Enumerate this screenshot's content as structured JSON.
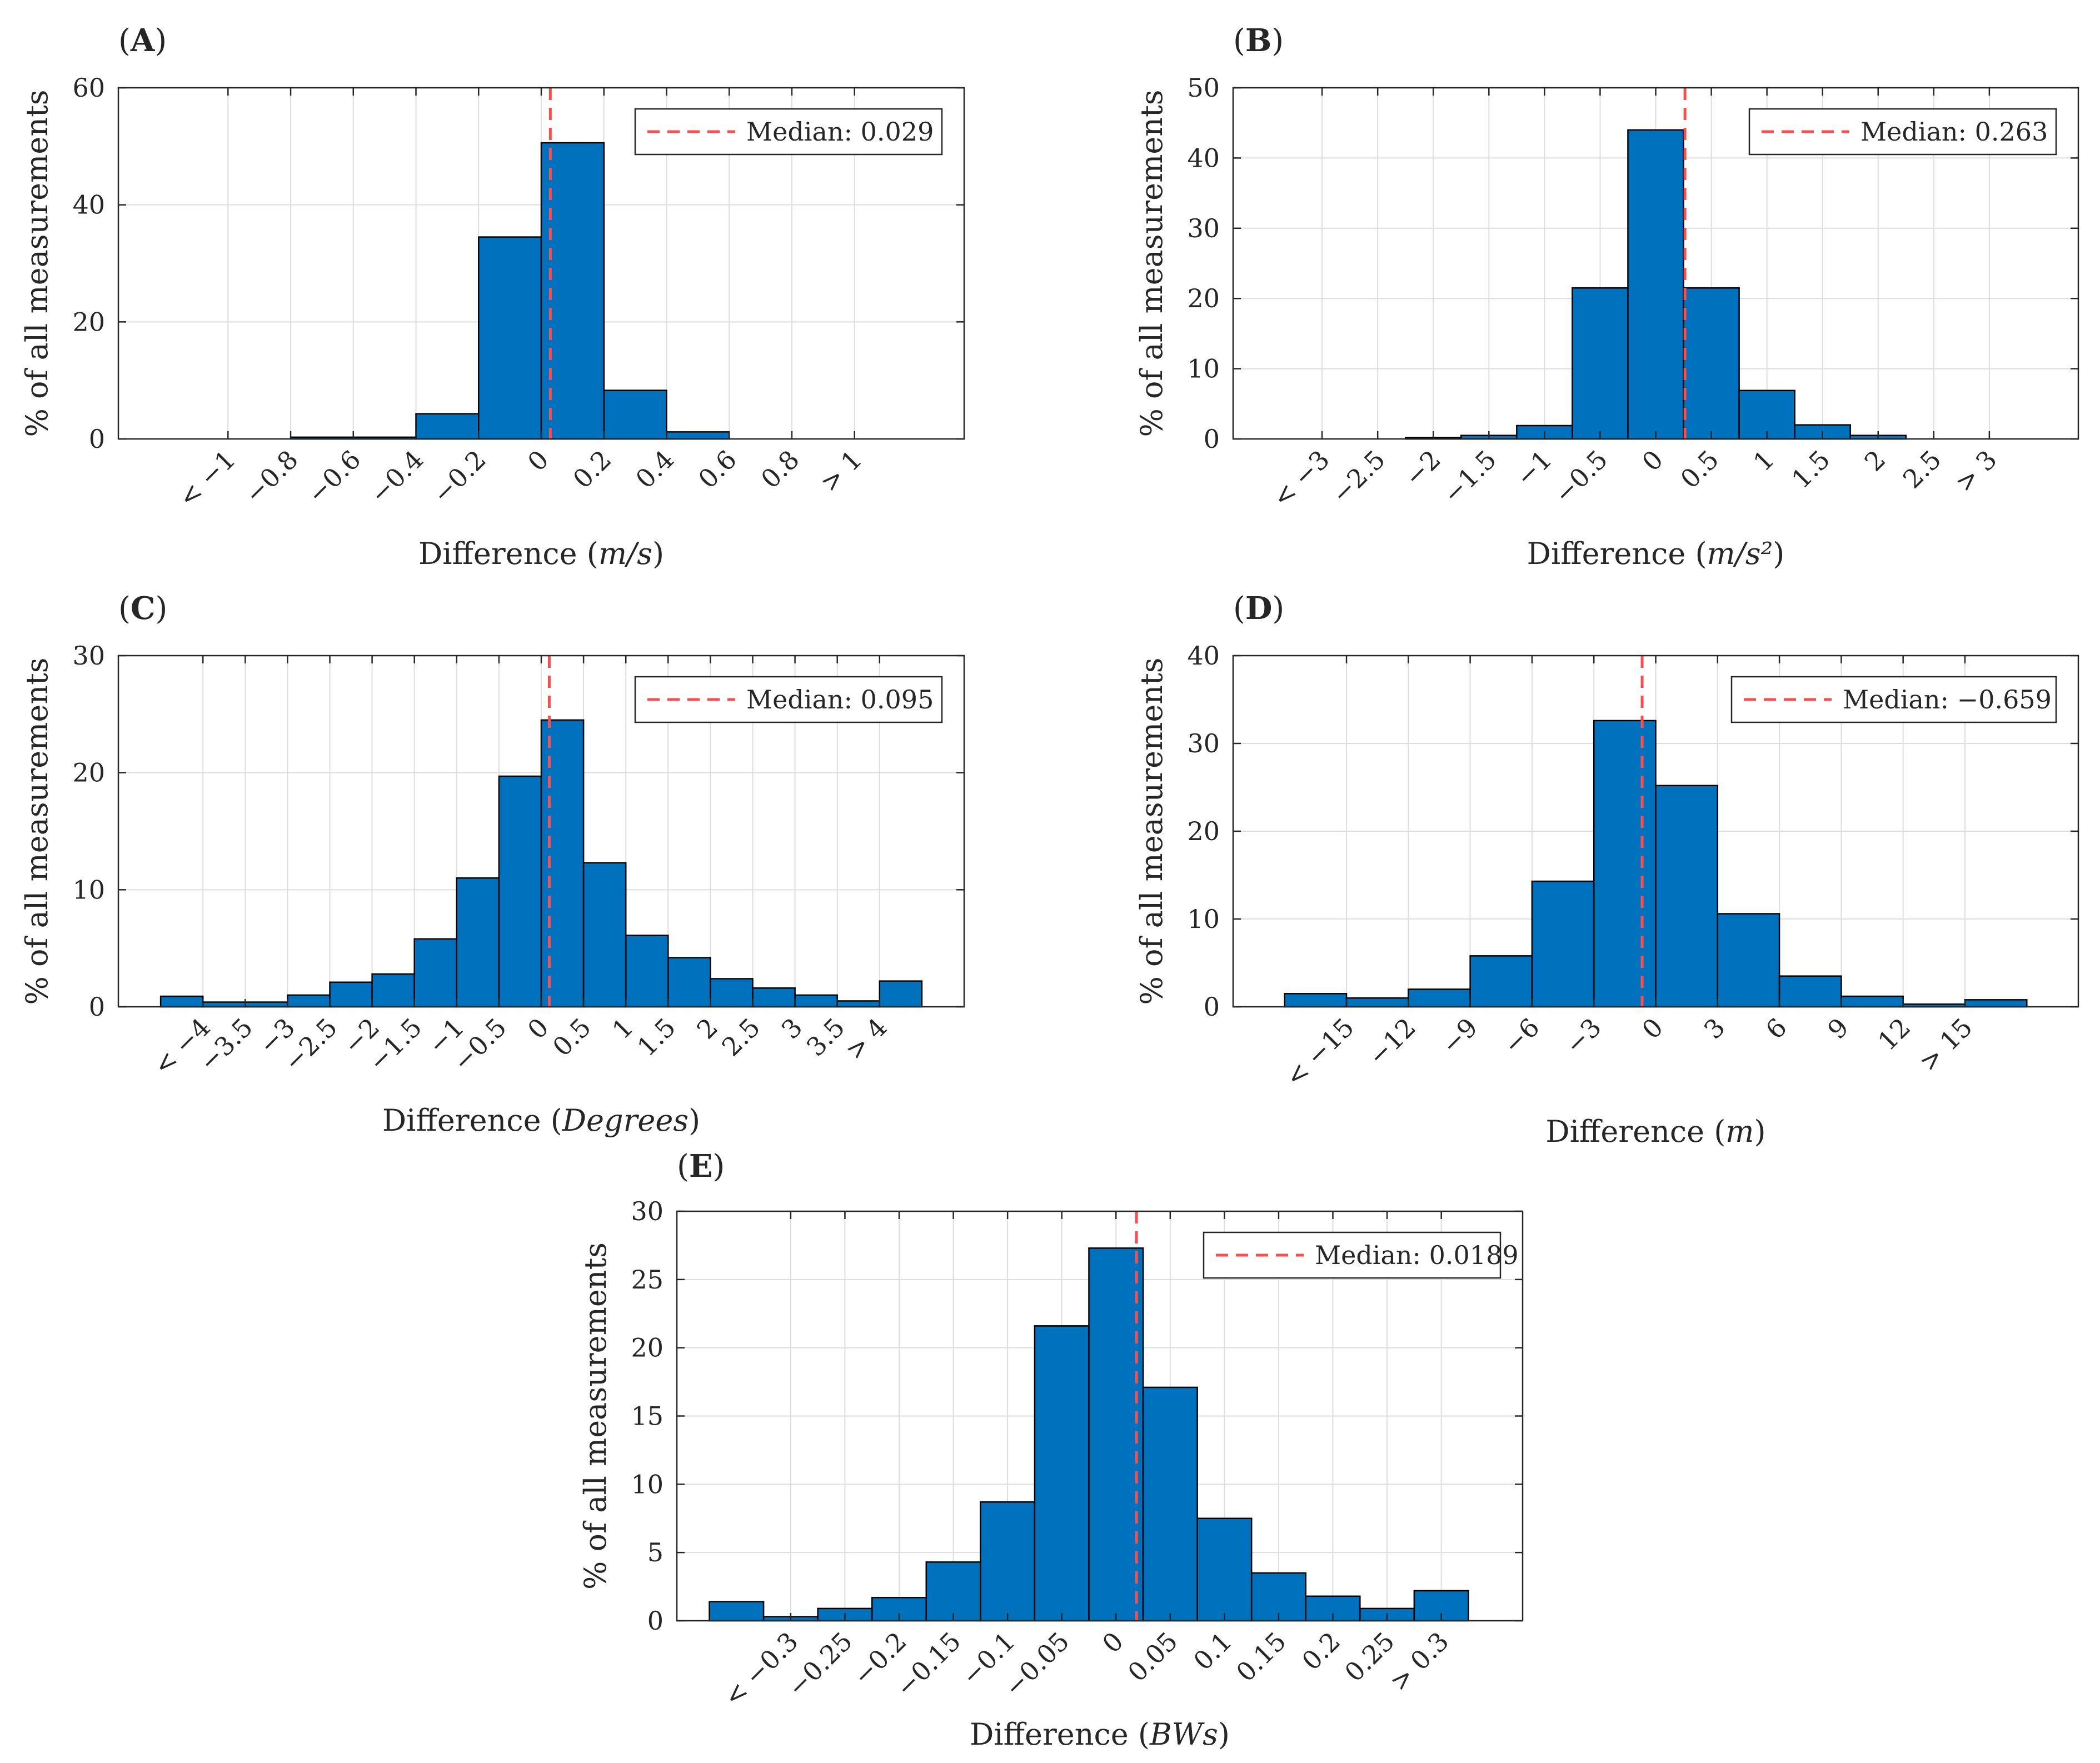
{
  "figure": {
    "ylabel_common": "% of all measurements"
  },
  "colors": {
    "bar": "#0072BD",
    "bar_edge": "#000000",
    "median": "#FF4D4D",
    "grid": "#dedede",
    "axis": "#262626"
  },
  "chart_data": [
    {
      "panel": "A",
      "panel_label": "(A)",
      "type": "bar",
      "xlabel": "Difference (m/s)",
      "ylabel": "% of all measurements",
      "xlim": [
        -1.35,
        1.35
      ],
      "ylim": [
        0,
        60
      ],
      "yticks": [
        0,
        20,
        40,
        60
      ],
      "yticklabels": [
        "0",
        "20",
        "40",
        "60"
      ],
      "xticks": [
        -1,
        -0.8,
        -0.6,
        -0.4,
        -0.2,
        0,
        0.2,
        0.4,
        0.6,
        0.8,
        1
      ],
      "xticklabels": [
        "< −1",
        "−0.8",
        "−0.6",
        "−0.4",
        "−0.2",
        "0",
        "0.2",
        "0.4",
        "0.6",
        "0.8",
        "> 1"
      ],
      "bin_edges": [
        -1.2,
        -1.0,
        -0.8,
        -0.6,
        -0.4,
        -0.2,
        0.0,
        0.2,
        0.4,
        0.6,
        0.8,
        1.0,
        1.2
      ],
      "values": [
        0,
        0,
        0.3,
        0.3,
        4.3,
        34.5,
        50.6,
        8.3,
        1.2,
        0,
        0,
        0
      ],
      "median": 0.029,
      "median_label": "Median:  0.029"
    },
    {
      "panel": "B",
      "panel_label": "(B)",
      "type": "bar",
      "xlabel": "Difference (m/s²)",
      "ylabel": "% of all measurements",
      "xlim": [
        -3.8,
        3.8
      ],
      "ylim": [
        0,
        50
      ],
      "yticks": [
        0,
        10,
        20,
        30,
        40,
        50
      ],
      "yticklabels": [
        "0",
        "10",
        "20",
        "30",
        "40",
        "50"
      ],
      "xticks": [
        -3,
        -2.5,
        -2,
        -1.5,
        -1,
        -0.5,
        0,
        0.5,
        1,
        1.5,
        2,
        2.5,
        3
      ],
      "xticklabels": [
        "< −3",
        "−2.5",
        "−2",
        "−1.5",
        "−1",
        "−0.5",
        "0",
        "0.5",
        "1",
        "1.5",
        "2",
        "2.5",
        "> 3"
      ],
      "bin_edges": [
        -3.25,
        -2.75,
        -2.25,
        -1.75,
        -1.25,
        -0.75,
        -0.25,
        0.25,
        0.75,
        1.25,
        1.75,
        2.25,
        2.75,
        3.25
      ],
      "values": [
        0,
        0,
        0.2,
        0.5,
        1.9,
        21.5,
        44.0,
        21.5,
        6.9,
        2.0,
        0.5,
        0,
        0
      ],
      "median": 0.263,
      "median_label": "Median:  0.263"
    },
    {
      "panel": "C",
      "panel_label": "(C)",
      "type": "bar",
      "xlabel": "Difference (Degrees)",
      "ylabel": "% of all measurements",
      "xlim": [
        -5.0,
        5.0
      ],
      "ylim": [
        0,
        30
      ],
      "yticks": [
        0,
        10,
        20,
        30
      ],
      "yticklabels": [
        "0",
        "10",
        "20",
        "30"
      ],
      "xticks": [
        -4,
        -3.5,
        -3,
        -2.5,
        -2,
        -1.5,
        -1,
        -0.5,
        0,
        0.5,
        1,
        1.5,
        2,
        2.5,
        3,
        3.5,
        4
      ],
      "xticklabels": [
        "< −4",
        "−3.5",
        "−3",
        "−2.5",
        "−2",
        "−1.5",
        "−1",
        "−0.5",
        "0",
        "0.5",
        "1",
        "1.5",
        "2",
        "2.5",
        "3",
        "3.5",
        "> 4"
      ],
      "bin_edges": [
        -4.5,
        -4.0,
        -3.5,
        -3.0,
        -2.5,
        -2.0,
        -1.5,
        -1.0,
        -0.5,
        0.0,
        0.5,
        1.0,
        1.5,
        2.0,
        2.5,
        3.0,
        3.5,
        4.0,
        4.5
      ],
      "values": [
        0.9,
        0.4,
        0.4,
        1.0,
        2.1,
        2.8,
        5.8,
        11.0,
        19.7,
        24.5,
        12.3,
        6.1,
        4.2,
        2.4,
        1.6,
        1.0,
        0.5,
        2.2
      ],
      "median": 0.095,
      "median_label": "Median:  0.095"
    },
    {
      "panel": "D",
      "panel_label": "(D)",
      "type": "bar",
      "xlabel": "Difference (m)",
      "ylabel": "% of all measurements",
      "xlim": [
        -20.5,
        20.5
      ],
      "ylim": [
        0,
        40
      ],
      "yticks": [
        0,
        10,
        20,
        30,
        40
      ],
      "yticklabels": [
        "0",
        "10",
        "20",
        "30",
        "40"
      ],
      "xticks": [
        -15,
        -12,
        -9,
        -6,
        -3,
        0,
        3,
        6,
        9,
        12,
        15
      ],
      "xticklabels": [
        "< −15",
        "−12",
        "−9",
        "−6",
        "−3",
        "0",
        "3",
        "6",
        "9",
        "12",
        "> 15"
      ],
      "bin_edges": [
        -18.0,
        -15.0,
        -12.0,
        -9.0,
        -6.0,
        -3.0,
        0.0,
        3.0,
        6.0,
        9.0,
        12.0,
        15.0,
        18.0
      ],
      "values": [
        1.5,
        1.0,
        2.0,
        5.8,
        14.3,
        32.6,
        25.2,
        10.6,
        3.5,
        1.2,
        0.3,
        0.8
      ],
      "median": -0.659,
      "median_label": "Median:  −0.659"
    },
    {
      "panel": "E",
      "panel_label": "(E)",
      "type": "bar",
      "xlabel": "Difference (BWs)",
      "ylabel": "% of all measurements",
      "xlim": [
        -0.405,
        0.375
      ],
      "ylim": [
        0,
        30
      ],
      "yticks": [
        0,
        5,
        10,
        15,
        20,
        25,
        30
      ],
      "yticklabels": [
        "0",
        "5",
        "10",
        "15",
        "20",
        "25",
        "30"
      ],
      "xticks": [
        -0.3,
        -0.25,
        -0.2,
        -0.15,
        -0.1,
        -0.05,
        0,
        0.05,
        0.1,
        0.15,
        0.2,
        0.25,
        0.3
      ],
      "xticklabels": [
        "< −0.3",
        "−0.25",
        "−0.2",
        "−0.15",
        "−0.1",
        "−0.05",
        "0",
        "0.05",
        "0.1",
        "0.15",
        "0.2",
        "0.25",
        "> 0.3"
      ],
      "bin_edges": [
        -0.375,
        -0.325,
        -0.275,
        -0.225,
        -0.175,
        -0.125,
        -0.075,
        -0.025,
        0.025,
        0.075,
        0.125,
        0.175,
        0.225,
        0.275,
        0.325
      ],
      "values": [
        1.4,
        0.3,
        0.9,
        1.7,
        4.3,
        8.7,
        21.6,
        27.3,
        17.1,
        7.5,
        3.5,
        1.8,
        0.9,
        2.2
      ],
      "median": 0.0189,
      "median_label": "Median:  0.0189"
    }
  ]
}
